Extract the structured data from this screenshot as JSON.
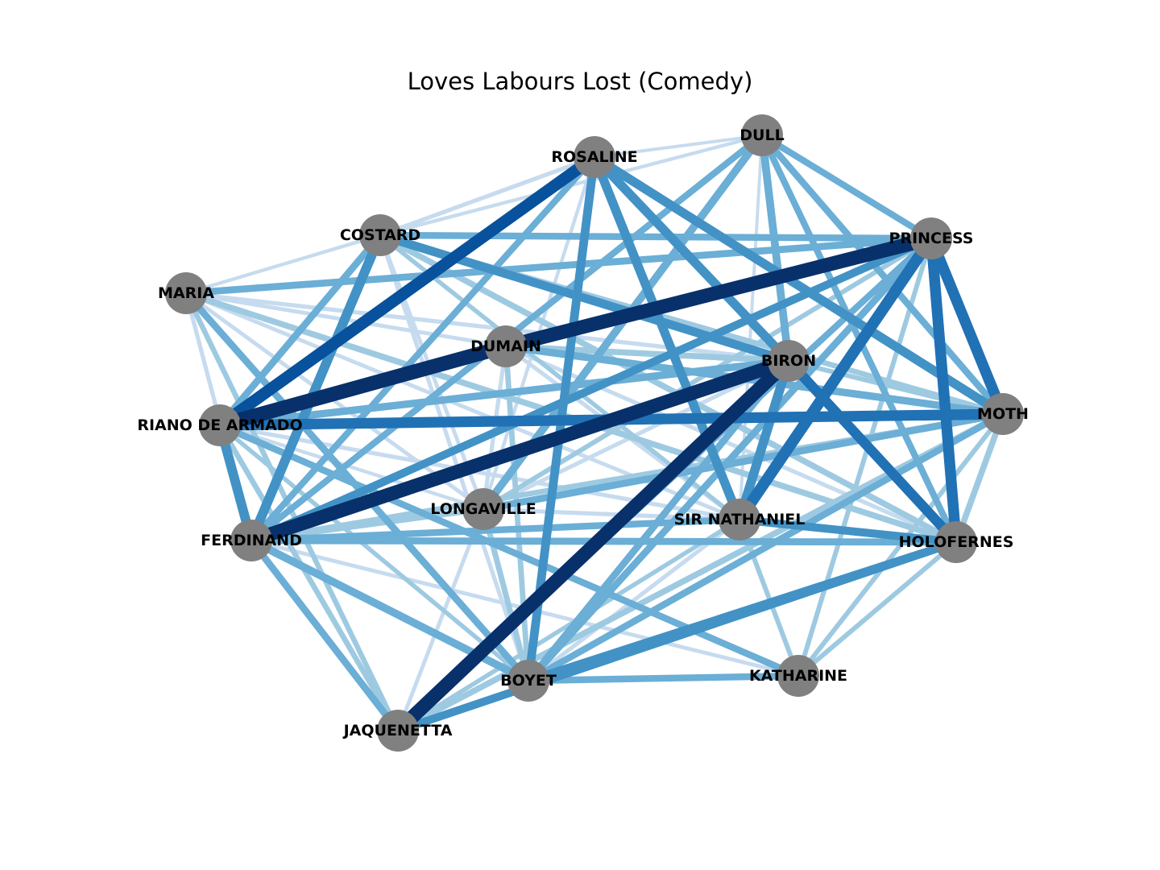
{
  "title": "Loves Labours Lost (Comedy)",
  "node_color": "#808080",
  "edge_colormap": [
    "#deebf7",
    "#c6dbef",
    "#9ecae1",
    "#6baed6",
    "#4292c6",
    "#2171b5",
    "#08519c",
    "#08306b"
  ],
  "nodes": [
    {
      "id": "DULL",
      "label": "DULL"
    },
    {
      "id": "ROSALINE",
      "label": "ROSALINE"
    },
    {
      "id": "COSTARD",
      "label": "COSTARD"
    },
    {
      "id": "PRINCESS",
      "label": "PRINCESS"
    },
    {
      "id": "MARIA",
      "label": "MARIA"
    },
    {
      "id": "DUMAIN",
      "label": "DUMAIN"
    },
    {
      "id": "BIRON",
      "label": "BIRON"
    },
    {
      "id": "ARMADO",
      "label": "RIANO DE ARMADO"
    },
    {
      "id": "MOTH",
      "label": "MOTH"
    },
    {
      "id": "LONGAVILLE",
      "label": "LONGAVILLE"
    },
    {
      "id": "SIR_NATHANIEL",
      "label": "SIR NATHANIEL"
    },
    {
      "id": "FERDINAND",
      "label": "FERDINAND"
    },
    {
      "id": "HOLOFERNES",
      "label": "HOLOFERNES"
    },
    {
      "id": "KATHARINE",
      "label": "KATHARINE"
    },
    {
      "id": "BOYET",
      "label": "BOYET"
    },
    {
      "id": "JAQUENETTA",
      "label": "JAQUENETTA"
    }
  ],
  "edges": [
    [
      "DUMAIN",
      "ARMADO",
      1.0
    ],
    [
      "PRINCESS",
      "DUMAIN",
      0.97
    ],
    [
      "FERDINAND",
      "BIRON",
      0.95
    ],
    [
      "BIRON",
      "JAQUENETTA",
      0.95
    ],
    [
      "ROSALINE",
      "ARMADO",
      0.8
    ],
    [
      "PRINCESS",
      "SIR_NATHANIEL",
      0.75
    ],
    [
      "PRINCESS",
      "MOTH",
      0.72
    ],
    [
      "PRINCESS",
      "HOLOFERNES",
      0.72
    ],
    [
      "ARMADO",
      "MOTH",
      0.7
    ],
    [
      "COSTARD",
      "FERDINAND",
      0.62
    ],
    [
      "BIRON",
      "HOLOFERNES",
      0.65
    ],
    [
      "ARMADO",
      "FERDINAND",
      0.62
    ],
    [
      "ROSALINE",
      "SIR_NATHANIEL",
      0.58
    ],
    [
      "ROSALINE",
      "BIRON",
      0.58
    ],
    [
      "ROSALINE",
      "MOTH",
      0.58
    ],
    [
      "BIRON",
      "SIR_NATHANIEL",
      0.6
    ],
    [
      "ROSALINE",
      "BOYET",
      0.55
    ],
    [
      "COSTARD",
      "BIRON",
      0.55
    ],
    [
      "DULL",
      "LONGAVILLE",
      0.48
    ],
    [
      "DULL",
      "BIRON",
      0.48
    ],
    [
      "COSTARD",
      "PRINCESS",
      0.4
    ],
    [
      "MARIA",
      "PRINCESS",
      0.42
    ],
    [
      "COSTARD",
      "ARMADO",
      0.42
    ],
    [
      "DUMAIN",
      "MOTH",
      0.45
    ],
    [
      "PRINCESS",
      "FERDINAND",
      0.5
    ],
    [
      "BIRON",
      "ARMADO",
      0.45
    ],
    [
      "FERDINAND",
      "HOLOFERNES",
      0.42
    ],
    [
      "SIR_NATHANIEL",
      "HOLOFERNES",
      0.5
    ],
    [
      "FERDINAND",
      "SIR_NATHANIEL",
      0.4
    ],
    [
      "LONGAVILLE",
      "MOTH",
      0.42
    ],
    [
      "HOLOFERNES",
      "BOYET",
      0.5
    ],
    [
      "HOLOFERNES",
      "JAQUENETTA",
      0.5
    ],
    [
      "FERDINAND",
      "BOYET",
      0.48
    ],
    [
      "FERDINAND",
      "JAQUENETTA",
      0.42
    ],
    [
      "MARIA",
      "BOYET",
      0.42
    ],
    [
      "BOYET",
      "KATHARINE",
      0.4
    ],
    [
      "PRINCESS",
      "BOYET",
      0.42
    ],
    [
      "DULL",
      "HOLOFERNES",
      0.38
    ],
    [
      "DULL",
      "MOTH",
      0.4
    ],
    [
      "DULL",
      "PRINCESS",
      0.38
    ],
    [
      "DULL",
      "FERDINAND",
      0.38
    ],
    [
      "ROSALINE",
      "FERDINAND",
      0.38
    ],
    [
      "MARIA",
      "HOLOFERNES",
      0.35
    ],
    [
      "ARMADO",
      "KATHARINE",
      0.4
    ],
    [
      "MOTH",
      "BOYET",
      0.4
    ],
    [
      "BIRON",
      "BOYET",
      0.42
    ],
    [
      "COSTARD",
      "HOLOFERNES",
      0.35
    ],
    [
      "MOTH",
      "HOLOFERNES",
      0.35
    ],
    [
      "MOTH",
      "JAQUENETTA",
      0.35
    ],
    [
      "PRINCESS",
      "JAQUENETTA",
      0.38
    ],
    [
      "COSTARD",
      "MOTH",
      0.3
    ],
    [
      "MARIA",
      "JAQUENETTA",
      0.28
    ],
    [
      "ARMADO",
      "JAQUENETTA",
      0.3
    ],
    [
      "DUMAIN",
      "BOYET",
      0.3
    ],
    [
      "LONGAVILLE",
      "BOYET",
      0.32
    ],
    [
      "DUMAIN",
      "BIRON",
      0.35
    ],
    [
      "LONGAVILLE",
      "FERDINAND",
      0.3
    ],
    [
      "FERDINAND",
      "MOTH",
      0.3
    ],
    [
      "SIR_NATHANIEL",
      "KATHARINE",
      0.25
    ],
    [
      "KATHARINE",
      "HOLOFERNES",
      0.25
    ],
    [
      "PRINCESS",
      "KATHARINE",
      0.25
    ],
    [
      "MOTH",
      "KATHARINE",
      0.25
    ],
    [
      "ROSALINE",
      "COSTARD",
      0.2
    ],
    [
      "DULL",
      "COSTARD",
      0.15
    ],
    [
      "MARIA",
      "COSTARD",
      0.15
    ],
    [
      "MARIA",
      "DUMAIN",
      0.18
    ],
    [
      "MARIA",
      "BIRON",
      0.2
    ],
    [
      "MARIA",
      "FERDINAND",
      0.2
    ],
    [
      "MARIA",
      "SIR_NATHANIEL",
      0.18
    ],
    [
      "MARIA",
      "LONGAVILLE",
      0.18
    ],
    [
      "ROSALINE",
      "LONGAVILLE",
      0.15
    ],
    [
      "DUMAIN",
      "LONGAVILLE",
      0.2
    ],
    [
      "DUMAIN",
      "SIR_NATHANIEL",
      0.2
    ],
    [
      "DUMAIN",
      "HOLOFERNES",
      0.2
    ],
    [
      "COSTARD",
      "LONGAVILLE",
      0.18
    ],
    [
      "COSTARD",
      "SIR_NATHANIEL",
      0.22
    ],
    [
      "LONGAVILLE",
      "SIR_NATHANIEL",
      0.2
    ],
    [
      "BIRON",
      "LONGAVILLE",
      0.2
    ],
    [
      "ARMADO",
      "SIR_NATHANIEL",
      0.2
    ],
    [
      "ARMADO",
      "LONGAVILLE",
      0.15
    ],
    [
      "ARMADO",
      "BOYET",
      0.22
    ],
    [
      "SIR_NATHANIEL",
      "JAQUENETTA",
      0.22
    ],
    [
      "SIR_NATHANIEL",
      "BOYET",
      0.2
    ],
    [
      "FERDINAND",
      "KATHARINE",
      0.18
    ],
    [
      "LONGAVILLE",
      "JAQUENETTA",
      0.18
    ],
    [
      "COSTARD",
      "BOYET",
      0.2
    ],
    [
      "DULL",
      "SIR_NATHANIEL",
      0.12
    ],
    [
      "DULL",
      "ROSALINE",
      0.12
    ],
    [
      "BIRON",
      "MOTH",
      0.25
    ],
    [
      "PRINCESS",
      "LONGAVILLE",
      0.25
    ]
  ]
}
